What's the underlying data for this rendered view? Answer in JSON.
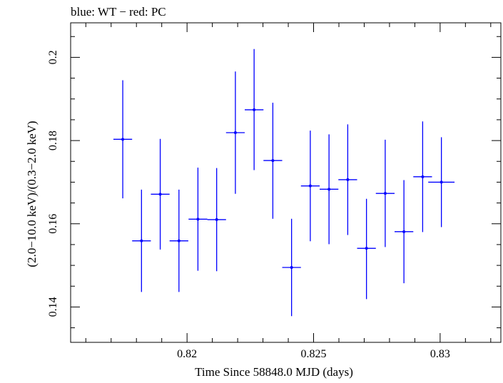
{
  "chart_data": {
    "type": "scatter",
    "title": "blue: WT − red: PC",
    "xlabel": "Time Since 58848.0 MJD (days)",
    "ylabel": "(2.0−10.0 keV)/(0.3−2.0 keV)",
    "xlim": [
      0.8154,
      0.8324
    ],
    "ylim": [
      0.1315,
      0.2083
    ],
    "x_ticks": [
      {
        "value": 0.82,
        "label": "0.82"
      },
      {
        "value": 0.825,
        "label": "0.825"
      },
      {
        "value": 0.83,
        "label": "0.83"
      }
    ],
    "y_ticks": [
      {
        "value": 0.14,
        "label": "0.14"
      },
      {
        "value": 0.16,
        "label": "0.16"
      },
      {
        "value": 0.18,
        "label": "0.18"
      },
      {
        "value": 0.2,
        "label": "0.2"
      }
    ],
    "grid": false,
    "series": [
      {
        "color": "#0000ff",
        "points": [
          {
            "x": 0.81746,
            "y": 0.1803,
            "xerr": 0.00037,
            "yerr_lo": 0.0142,
            "yerr_hi": 0.0142
          },
          {
            "x": 0.8182,
            "y": 0.1559,
            "xerr": 0.00037,
            "yerr_lo": 0.0123,
            "yerr_hi": 0.0123
          },
          {
            "x": 0.81894,
            "y": 0.1671,
            "xerr": 0.00037,
            "yerr_lo": 0.0133,
            "yerr_hi": 0.0133
          },
          {
            "x": 0.81968,
            "y": 0.1559,
            "xerr": 0.00037,
            "yerr_lo": 0.0123,
            "yerr_hi": 0.0123
          },
          {
            "x": 0.82043,
            "y": 0.1611,
            "xerr": 0.00037,
            "yerr_lo": 0.0124,
            "yerr_hi": 0.0124
          },
          {
            "x": 0.82117,
            "y": 0.161,
            "xerr": 0.00037,
            "yerr_lo": 0.0124,
            "yerr_hi": 0.0124
          },
          {
            "x": 0.82191,
            "y": 0.1819,
            "xerr": 0.00037,
            "yerr_lo": 0.0147,
            "yerr_hi": 0.0147
          },
          {
            "x": 0.82265,
            "y": 0.1874,
            "xerr": 0.00037,
            "yerr_lo": 0.0145,
            "yerr_hi": 0.0146
          },
          {
            "x": 0.82339,
            "y": 0.1752,
            "xerr": 0.00037,
            "yerr_lo": 0.014,
            "yerr_hi": 0.0139
          },
          {
            "x": 0.82413,
            "y": 0.1495,
            "xerr": 0.00037,
            "yerr_lo": 0.0117,
            "yerr_hi": 0.0117
          },
          {
            "x": 0.82487,
            "y": 0.1691,
            "xerr": 0.00037,
            "yerr_lo": 0.0133,
            "yerr_hi": 0.0133
          },
          {
            "x": 0.82561,
            "y": 0.1683,
            "xerr": 0.00037,
            "yerr_lo": 0.0132,
            "yerr_hi": 0.0132
          },
          {
            "x": 0.82635,
            "y": 0.1706,
            "xerr": 0.00037,
            "yerr_lo": 0.0133,
            "yerr_hi": 0.0133
          },
          {
            "x": 0.82709,
            "y": 0.1541,
            "xerr": 0.00037,
            "yerr_lo": 0.0122,
            "yerr_hi": 0.0119
          },
          {
            "x": 0.82783,
            "y": 0.1673,
            "xerr": 0.00037,
            "yerr_lo": 0.0129,
            "yerr_hi": 0.0129
          },
          {
            "x": 0.82857,
            "y": 0.1581,
            "xerr": 0.00037,
            "yerr_lo": 0.0124,
            "yerr_hi": 0.0124
          },
          {
            "x": 0.82931,
            "y": 0.1713,
            "xerr": 0.00037,
            "yerr_lo": 0.0133,
            "yerr_hi": 0.0133
          },
          {
            "x": 0.83005,
            "y": 0.17,
            "xerr": 0.00052,
            "yerr_lo": 0.0108,
            "yerr_hi": 0.0108
          }
        ]
      }
    ]
  }
}
